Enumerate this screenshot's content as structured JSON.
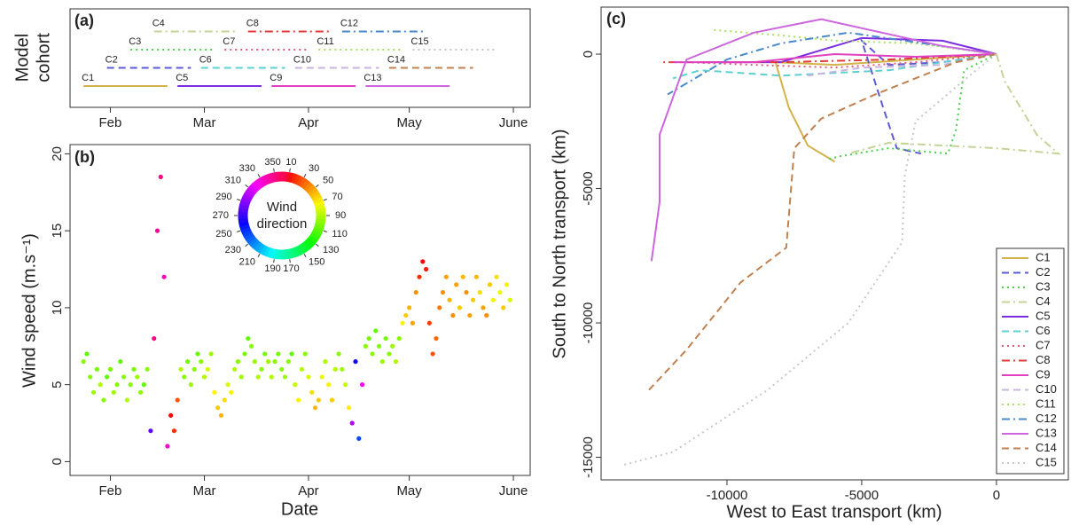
{
  "chart_data": [
    {
      "type": "timeline",
      "title": "(a)",
      "ylabel": [
        "Model",
        "cohort"
      ],
      "xlim": [
        20,
        157
      ],
      "xticks": [
        {
          "value": 32,
          "label": "Feb"
        },
        {
          "value": 60,
          "label": "Mar"
        },
        {
          "value": 91,
          "label": "Apr"
        },
        {
          "value": 121,
          "label": "May"
        },
        {
          "value": 152,
          "label": "June"
        }
      ],
      "series": [
        {
          "name": "C1",
          "color": "#d4b24a",
          "dash": "solid",
          "start": 24,
          "end": 49
        },
        {
          "name": "C2",
          "color": "#5b5bd6",
          "dash": "dashed",
          "start": 31,
          "end": 56
        },
        {
          "name": "C3",
          "color": "#4ccf4c",
          "dash": "dotted",
          "start": 38,
          "end": 63
        },
        {
          "name": "C4",
          "color": "#c4d498",
          "dash": "dashdot",
          "start": 45,
          "end": 70
        },
        {
          "name": "C5",
          "color": "#7b2de0",
          "dash": "solid",
          "start": 52,
          "end": 77
        },
        {
          "name": "C6",
          "color": "#5fd0d0",
          "dash": "dashed",
          "start": 59,
          "end": 84
        },
        {
          "name": "C7",
          "color": "#e05c7a",
          "dash": "dotted",
          "start": 66,
          "end": 91
        },
        {
          "name": "C8",
          "color": "#e03c3c",
          "dash": "dashdot",
          "start": 73,
          "end": 98
        },
        {
          "name": "C9",
          "color": "#e040c0",
          "dash": "solid",
          "start": 80,
          "end": 105
        },
        {
          "name": "C10",
          "color": "#c8b4dc",
          "dash": "dashed",
          "start": 87,
          "end": 112
        },
        {
          "name": "C11",
          "color": "#a8e060",
          "dash": "dotted",
          "start": 94,
          "end": 119
        },
        {
          "name": "C12",
          "color": "#4a8ac8",
          "dash": "dashdot",
          "start": 101,
          "end": 126
        },
        {
          "name": "C13",
          "color": "#cc66dd",
          "dash": "solid",
          "start": 108,
          "end": 133
        },
        {
          "name": "C14",
          "color": "#c08050",
          "dash": "dashed",
          "start": 115,
          "end": 140
        },
        {
          "name": "C15",
          "color": "#c8c8c8",
          "dash": "dotted",
          "start": 122,
          "end": 147
        }
      ]
    },
    {
      "type": "scatter",
      "title": "(b)",
      "xlabel": "Date",
      "ylabel": "Wind speed (m.s⁻¹)",
      "xlim": [
        20,
        157
      ],
      "ylim": [
        -0.9,
        20.6
      ],
      "xticks": [
        {
          "value": 32,
          "label": "Feb"
        },
        {
          "value": 60,
          "label": "Mar"
        },
        {
          "value": 91,
          "label": "Apr"
        },
        {
          "value": 121,
          "label": "May"
        },
        {
          "value": 152,
          "label": "June"
        }
      ],
      "yticks": [
        0,
        5,
        10,
        15,
        20
      ],
      "color_by": "direction",
      "wheel_title": [
        "Wind",
        "direction"
      ],
      "wheel_ticks": [
        10,
        30,
        50,
        70,
        90,
        110,
        130,
        150,
        170,
        190,
        210,
        230,
        250,
        270,
        290,
        310,
        330,
        350
      ],
      "x": [
        24,
        25,
        26,
        27,
        28,
        29,
        30,
        31,
        32,
        33,
        34,
        35,
        36,
        37,
        38,
        39,
        40,
        41,
        42,
        43,
        44,
        45,
        46,
        47,
        48,
        49,
        50,
        51,
        52,
        53,
        54,
        55,
        56,
        57,
        58,
        59,
        60,
        61,
        62,
        63,
        64,
        65,
        66,
        67,
        68,
        69,
        70,
        71,
        72,
        73,
        74,
        75,
        76,
        77,
        78,
        79,
        80,
        81,
        82,
        83,
        84,
        85,
        86,
        87,
        88,
        89,
        90,
        91,
        92,
        93,
        94,
        95,
        96,
        97,
        98,
        99,
        100,
        101,
        102,
        103,
        104,
        105,
        106,
        107,
        108,
        109,
        110,
        111,
        112,
        113,
        114,
        115,
        116,
        117,
        118,
        119,
        120,
        121,
        122,
        123,
        124,
        125,
        126,
        127,
        128,
        129,
        130,
        131,
        132,
        133,
        134,
        135,
        136,
        137,
        138,
        139,
        140,
        141,
        142,
        143,
        144,
        145,
        146,
        147,
        148,
        149,
        150,
        151
      ],
      "values": [
        6.5,
        7.0,
        5.5,
        4.5,
        6.0,
        5.0,
        4.0,
        5.5,
        6.0,
        4.5,
        5.0,
        6.5,
        5.5,
        4.0,
        5.0,
        6.0,
        5.5,
        4.5,
        5.0,
        6.0,
        2.0,
        8.0,
        15.0,
        18.5,
        12.0,
        1.0,
        3.0,
        2.0,
        4.0,
        6.0,
        5.5,
        6.5,
        5.0,
        6.0,
        7.0,
        6.5,
        5.5,
        6.0,
        7.0,
        4.5,
        3.5,
        3.0,
        4.0,
        5.0,
        4.5,
        6.0,
        6.5,
        5.5,
        7.0,
        8.0,
        7.5,
        6.5,
        5.5,
        6.0,
        7.0,
        6.5,
        5.5,
        6.5,
        7.0,
        6.0,
        5.5,
        6.5,
        7.0,
        5.0,
        4.0,
        6.0,
        7.0,
        5.5,
        4.5,
        3.5,
        4.0,
        5.5,
        6.5,
        5.0,
        4.0,
        6.0,
        7.0,
        6.0,
        5.0,
        3.5,
        2.5,
        6.5,
        1.5,
        5.0,
        7.5,
        8.0,
        7.0,
        8.5,
        7.5,
        6.5,
        8.0,
        7.0,
        7.5,
        6.5,
        8.0,
        9.0,
        9.5,
        10.0,
        9.0,
        11.0,
        12.0,
        13.0,
        12.5,
        9.0,
        7.0,
        8.0,
        10.0,
        11.0,
        12.0,
        10.5,
        9.5,
        11.5,
        10.0,
        12.0,
        11.0,
        9.5,
        10.5,
        12.0,
        11.0,
        10.0,
        9.5,
        11.5,
        10.5,
        12.0,
        11.0,
        10.0,
        11.5,
        10.5
      ],
      "direction": [
        100,
        110,
        100,
        95,
        105,
        90,
        100,
        110,
        105,
        95,
        100,
        110,
        100,
        90,
        100,
        105,
        95,
        100,
        110,
        100,
        280,
        350,
        345,
        350,
        335,
        330,
        10,
        20,
        30,
        90,
        100,
        105,
        95,
        100,
        110,
        100,
        90,
        80,
        95,
        70,
        60,
        55,
        65,
        80,
        70,
        90,
        100,
        95,
        105,
        110,
        100,
        95,
        90,
        100,
        105,
        95,
        90,
        100,
        105,
        100,
        95,
        100,
        110,
        85,
        70,
        90,
        100,
        80,
        65,
        55,
        60,
        75,
        90,
        70,
        60,
        90,
        100,
        95,
        85,
        70,
        300,
        260,
        240,
        320,
        100,
        105,
        100,
        110,
        100,
        95,
        105,
        100,
        95,
        90,
        100,
        70,
        60,
        55,
        50,
        45,
        20,
        10,
        15,
        25,
        30,
        35,
        40,
        45,
        50,
        55,
        45,
        50,
        60,
        55,
        45,
        50,
        60,
        55,
        65,
        50,
        45,
        60,
        70,
        65,
        75,
        60,
        70,
        80
      ]
    },
    {
      "type": "line",
      "title": "(c)",
      "xlabel": "West to East transport (km)",
      "ylabel": "South to North transport (km)",
      "xlim": [
        -14670,
        2700
      ],
      "ylim": [
        -15840,
        1750
      ],
      "xticks": [
        -10000,
        -5000,
        0
      ],
      "yticks": [
        0,
        -5000,
        -10000,
        -15000
      ],
      "legend": "lower right",
      "series": [
        {
          "name": "C1",
          "color": "#d4b24a",
          "dash": "solid",
          "x": [
            0,
            -3000,
            -6000,
            -8200,
            -7700,
            -7000,
            -6000
          ],
          "values": [
            0,
            -200,
            -400,
            -300,
            -2000,
            -3400,
            -4000
          ]
        },
        {
          "name": "C2",
          "color": "#5b5bd6",
          "dash": "dashed",
          "x": [
            0,
            -2000,
            -4000,
            -5000,
            -4200,
            -3700,
            -2800
          ],
          "values": [
            0,
            -300,
            -400,
            500,
            -2000,
            -3500,
            -3700
          ]
        },
        {
          "name": "C3",
          "color": "#4ccf4c",
          "dash": "dotted",
          "x": [
            0,
            -1200,
            -1500,
            -1800,
            -4000,
            -5800,
            -6200
          ],
          "values": [
            0,
            -600,
            -2800,
            -3700,
            -3500,
            -3800,
            -3900
          ]
        },
        {
          "name": "C4",
          "color": "#c4d498",
          "dash": "dashdot",
          "x": [
            0,
            300,
            1500,
            2300,
            0,
            -4000,
            -5500
          ],
          "values": [
            0,
            -1000,
            -3000,
            -3700,
            -3500,
            -3300,
            -3700
          ]
        },
        {
          "name": "C5",
          "color": "#7b2de0",
          "dash": "solid",
          "x": [
            0,
            -2000,
            -5000,
            -8000,
            -11000
          ],
          "values": [
            0,
            500,
            600,
            -300,
            -300
          ]
        },
        {
          "name": "C6",
          "color": "#5fd0d0",
          "dash": "dashed",
          "x": [
            0,
            -4000,
            -8000,
            -11000,
            -12000
          ],
          "values": [
            0,
            -600,
            -800,
            -600,
            -900
          ]
        },
        {
          "name": "C7",
          "color": "#e05c7a",
          "dash": "dotted",
          "x": [
            0,
            -3000,
            -6000,
            -9000,
            -11500
          ],
          "values": [
            0,
            -300,
            -500,
            -400,
            -300
          ]
        },
        {
          "name": "C8",
          "color": "#e03c3c",
          "dash": "dashdot",
          "x": [
            0,
            -4000,
            -8000,
            -11000,
            -12500
          ],
          "values": [
            0,
            -200,
            -300,
            -300,
            -300
          ]
        },
        {
          "name": "C9",
          "color": "#e040c0",
          "dash": "solid",
          "x": [
            0,
            -3000,
            -6000,
            -9000,
            -12000
          ],
          "values": [
            0,
            -100,
            0,
            -300,
            -300
          ]
        },
        {
          "name": "C10",
          "color": "#c8b4dc",
          "dash": "dashed",
          "x": [
            0,
            -2000,
            -5000,
            -7000
          ],
          "values": [
            0,
            -400,
            -500,
            -800
          ]
        },
        {
          "name": "C11",
          "color": "#a8e060",
          "dash": "dotted",
          "x": [
            0,
            -3000,
            -6000,
            -8000,
            -10500
          ],
          "values": [
            0,
            400,
            500,
            700,
            900
          ]
        },
        {
          "name": "C12",
          "color": "#4a8ac8",
          "dash": "dashdot",
          "x": [
            0,
            -2000,
            -5500,
            -8000,
            -10000,
            -12200
          ],
          "values": [
            0,
            300,
            800,
            400,
            -200,
            -1500
          ]
        },
        {
          "name": "C13",
          "color": "#cc66dd",
          "dash": "solid",
          "x": [
            0,
            -2000,
            -6500,
            -9000,
            -11500,
            -12500,
            -12500,
            -12800
          ],
          "values": [
            0,
            300,
            1300,
            800,
            -200,
            -3000,
            -5500,
            -7700
          ]
        },
        {
          "name": "C14",
          "color": "#c08050",
          "dash": "dashed",
          "x": [
            0,
            -1500,
            -4500,
            -6500,
            -7500,
            -7800,
            -9500,
            -11500,
            -12900
          ],
          "values": [
            0,
            -300,
            -1500,
            -2400,
            -3500,
            -7200,
            -8500,
            -11000,
            -12500
          ]
        },
        {
          "name": "C15",
          "color": "#c8c8c8",
          "dash": "dotted",
          "x": [
            0,
            -1000,
            -3000,
            -3400,
            -3500,
            -5500,
            -8500,
            -12000,
            -13900
          ],
          "values": [
            0,
            -800,
            -2500,
            -4500,
            -7000,
            -10000,
            -12500,
            -14800,
            -15300
          ]
        }
      ]
    }
  ]
}
